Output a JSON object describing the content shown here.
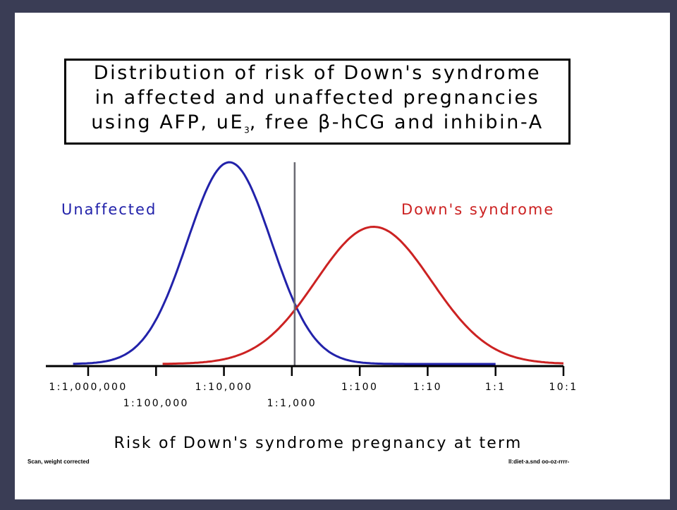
{
  "title_lines": [
    "Distribution of risk of Down's syndrome",
    "in affected and unaffected pregnancies"
  ],
  "title_line3": {
    "before": "using AFP, uE",
    "subscript": "3",
    "after": ", free β-hCG and inhibin-A"
  },
  "footnotes": {
    "left": "Scan, weight corrected",
    "right": "ll:diet·a.snd oo-oz-rrrr-"
  },
  "chart_data": {
    "type": "line",
    "title": "Distribution of risk of Down's syndrome in affected and unaffected pregnancies using AFP, uE3, free β-hCG and inhibin-A",
    "xlabel": "Risk of Down's syndrome pregnancy at term",
    "ylabel": "",
    "x_scale": "log",
    "x_ticks": [
      {
        "label": "1:1,000,000",
        "value": 1e-06,
        "row": 1
      },
      {
        "label": "1:100,000",
        "value": 1e-05,
        "row": 2
      },
      {
        "label": "1:10,000",
        "value": 0.0001,
        "row": 1
      },
      {
        "label": "1:1,000",
        "value": 0.001,
        "row": 2
      },
      {
        "label": "1:100",
        "value": 0.01,
        "row": 1
      },
      {
        "label": "1:10",
        "value": 0.1,
        "row": 1
      },
      {
        "label": "1:1",
        "value": 1,
        "row": 1
      },
      {
        "label": "10:1",
        "value": 10,
        "row": 1
      }
    ],
    "xlim": [
      6e-07,
      10
    ],
    "ylim": [
      0,
      1
    ],
    "cutoff": {
      "value": 0.0011
    },
    "series": [
      {
        "name": "Unaffected",
        "color": "#2222aa",
        "distribution": "log-normal",
        "mode": 0.00012,
        "sd_log10": 0.62,
        "peak": 1.0,
        "range": [
          6e-07,
          1
        ]
      },
      {
        "name": "Down's syndrome",
        "color": "#cc2222",
        "distribution": "log-normal",
        "mode": 0.016,
        "sd_log10": 0.85,
        "peak": 0.68,
        "range": [
          1.25e-05,
          10
        ]
      }
    ],
    "grid": false,
    "legend": "inline labels"
  }
}
